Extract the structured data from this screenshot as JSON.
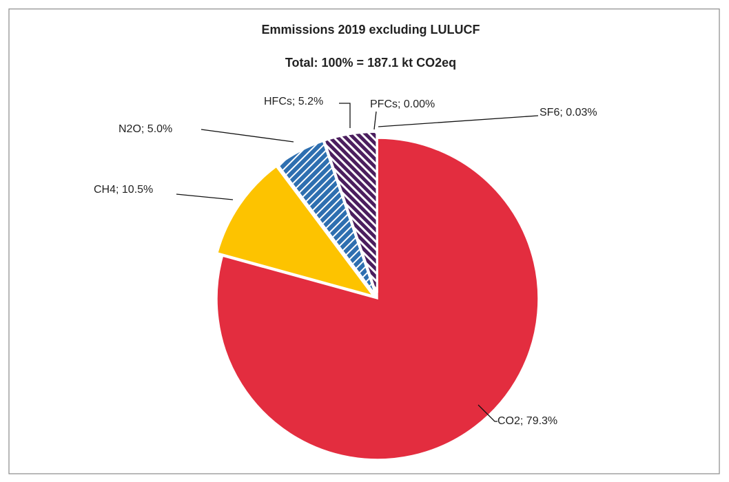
{
  "chart_data": {
    "type": "pie",
    "title": "Emmissions 2019 excluding LULUCF",
    "subtitle": "Total: 100% = 187.1 kt CO2eq",
    "values": [
      79.3,
      10.5,
      5.0,
      5.2,
      0.0,
      0.03
    ],
    "value_labels": [
      "CO2; 79.3%",
      "CH4; 10.5%",
      "N2O; 5.0%",
      "HFCs; 5.2%",
      "PFCs; 0.00%",
      "SF6; 0.03%"
    ],
    "colors": [
      "#e32d3f",
      "#fdc300",
      "#2e6fb0",
      "#4b1e5e",
      "#7a7a7a",
      "#4b4b4b"
    ],
    "hatched": [
      false,
      false,
      true,
      true,
      false,
      false
    ]
  }
}
